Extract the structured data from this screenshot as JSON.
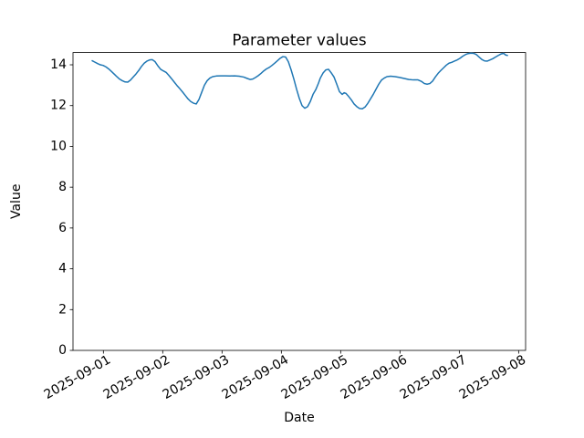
{
  "figure": {
    "background": "#ffffff",
    "text_color": "#000000",
    "spine_color": "#000000"
  },
  "chart_data": {
    "type": "line",
    "title": "Parameter values",
    "xlabel": "Date",
    "ylabel": "Value",
    "grid": false,
    "legend": null,
    "x_unit": "days since 2025-09-01 00:00",
    "x_tick_labels": [
      "2025-09-01",
      "2025-09-02",
      "2025-09-03",
      "2025-09-04",
      "2025-09-05",
      "2025-09-06",
      "2025-09-07",
      "2025-09-08"
    ],
    "x_ticks_day_offset": [
      0,
      1,
      2,
      3,
      4,
      5,
      6,
      7
    ],
    "x_tick_rotation_deg": 30,
    "y_ticks": [
      0,
      2,
      4,
      6,
      8,
      10,
      12,
      14
    ],
    "xlim_day_offset": [
      -0.5125,
      7.1175
    ],
    "ylim": [
      0,
      14.6
    ],
    "series": [
      {
        "name": "parameter-values",
        "color": "#1f77b4",
        "line_width": 1.5,
        "points_day_value": [
          [
            -0.189,
            14.2
          ],
          [
            -0.143,
            14.13
          ],
          [
            -0.097,
            14.06
          ],
          [
            -0.051,
            14.0
          ],
          [
            -0.005,
            13.97
          ],
          [
            0.042,
            13.9
          ],
          [
            0.088,
            13.8
          ],
          [
            0.134,
            13.68
          ],
          [
            0.18,
            13.55
          ],
          [
            0.226,
            13.42
          ],
          [
            0.272,
            13.3
          ],
          [
            0.318,
            13.22
          ],
          [
            0.365,
            13.16
          ],
          [
            0.411,
            13.15
          ],
          [
            0.457,
            13.25
          ],
          [
            0.503,
            13.4
          ],
          [
            0.549,
            13.55
          ],
          [
            0.595,
            13.72
          ],
          [
            0.642,
            13.92
          ],
          [
            0.688,
            14.08
          ],
          [
            0.734,
            14.18
          ],
          [
            0.78,
            14.24
          ],
          [
            0.826,
            14.25
          ],
          [
            0.872,
            14.15
          ],
          [
            0.918,
            13.95
          ],
          [
            0.965,
            13.78
          ],
          [
            1.011,
            13.7
          ],
          [
            1.057,
            13.63
          ],
          [
            1.103,
            13.48
          ],
          [
            1.149,
            13.32
          ],
          [
            1.195,
            13.15
          ],
          [
            1.242,
            12.98
          ],
          [
            1.288,
            12.83
          ],
          [
            1.334,
            12.67
          ],
          [
            1.38,
            12.5
          ],
          [
            1.426,
            12.33
          ],
          [
            1.472,
            12.2
          ],
          [
            1.518,
            12.12
          ],
          [
            1.565,
            12.08
          ],
          [
            1.611,
            12.3
          ],
          [
            1.657,
            12.65
          ],
          [
            1.703,
            13.0
          ],
          [
            1.749,
            13.22
          ],
          [
            1.795,
            13.35
          ],
          [
            1.842,
            13.42
          ],
          [
            1.903,
            13.45
          ],
          [
            1.98,
            13.46
          ],
          [
            2.057,
            13.46
          ],
          [
            2.134,
            13.45
          ],
          [
            2.211,
            13.46
          ],
          [
            2.288,
            13.44
          ],
          [
            2.365,
            13.4
          ],
          [
            2.426,
            13.33
          ],
          [
            2.472,
            13.28
          ],
          [
            2.518,
            13.3
          ],
          [
            2.565,
            13.38
          ],
          [
            2.611,
            13.47
          ],
          [
            2.657,
            13.58
          ],
          [
            2.703,
            13.7
          ],
          [
            2.749,
            13.8
          ],
          [
            2.795,
            13.87
          ],
          [
            2.842,
            13.97
          ],
          [
            2.888,
            14.08
          ],
          [
            2.934,
            14.2
          ],
          [
            2.98,
            14.32
          ],
          [
            3.026,
            14.4
          ],
          [
            3.072,
            14.38
          ],
          [
            3.118,
            14.15
          ],
          [
            3.165,
            13.75
          ],
          [
            3.211,
            13.3
          ],
          [
            3.257,
            12.8
          ],
          [
            3.303,
            12.35
          ],
          [
            3.349,
            12.0
          ],
          [
            3.395,
            11.87
          ],
          [
            3.442,
            11.95
          ],
          [
            3.488,
            12.2
          ],
          [
            3.534,
            12.55
          ],
          [
            3.58,
            12.78
          ],
          [
            3.626,
            13.1
          ],
          [
            3.657,
            13.35
          ],
          [
            3.703,
            13.6
          ],
          [
            3.749,
            13.75
          ],
          [
            3.795,
            13.78
          ],
          [
            3.842,
            13.6
          ],
          [
            3.888,
            13.4
          ],
          [
            3.934,
            13.05
          ],
          [
            3.98,
            12.68
          ],
          [
            4.026,
            12.55
          ],
          [
            4.057,
            12.63
          ],
          [
            4.088,
            12.6
          ],
          [
            4.134,
            12.45
          ],
          [
            4.18,
            12.28
          ],
          [
            4.226,
            12.08
          ],
          [
            4.272,
            11.95
          ],
          [
            4.318,
            11.86
          ],
          [
            4.365,
            11.84
          ],
          [
            4.411,
            11.93
          ],
          [
            4.457,
            12.11
          ],
          [
            4.503,
            12.33
          ],
          [
            4.549,
            12.55
          ],
          [
            4.595,
            12.8
          ],
          [
            4.642,
            13.05
          ],
          [
            4.688,
            13.25
          ],
          [
            4.734,
            13.35
          ],
          [
            4.78,
            13.42
          ],
          [
            4.842,
            13.44
          ],
          [
            4.918,
            13.42
          ],
          [
            4.995,
            13.38
          ],
          [
            5.072,
            13.33
          ],
          [
            5.149,
            13.28
          ],
          [
            5.226,
            13.26
          ],
          [
            5.303,
            13.26
          ],
          [
            5.365,
            13.18
          ],
          [
            5.411,
            13.08
          ],
          [
            5.457,
            13.05
          ],
          [
            5.503,
            13.08
          ],
          [
            5.549,
            13.2
          ],
          [
            5.595,
            13.4
          ],
          [
            5.642,
            13.58
          ],
          [
            5.688,
            13.72
          ],
          [
            5.734,
            13.85
          ],
          [
            5.78,
            13.98
          ],
          [
            5.826,
            14.08
          ],
          [
            5.872,
            14.12
          ],
          [
            5.918,
            14.18
          ],
          [
            5.965,
            14.24
          ],
          [
            6.011,
            14.32
          ],
          [
            6.057,
            14.42
          ],
          [
            6.103,
            14.5
          ],
          [
            6.149,
            14.55
          ],
          [
            6.195,
            14.57
          ],
          [
            6.242,
            14.56
          ],
          [
            6.288,
            14.5
          ],
          [
            6.334,
            14.38
          ],
          [
            6.38,
            14.26
          ],
          [
            6.426,
            14.19
          ],
          [
            6.472,
            14.18
          ],
          [
            6.518,
            14.24
          ],
          [
            6.565,
            14.3
          ],
          [
            6.611,
            14.38
          ],
          [
            6.657,
            14.46
          ],
          [
            6.703,
            14.53
          ],
          [
            6.749,
            14.56
          ],
          [
            6.78,
            14.48
          ],
          [
            6.811,
            14.46
          ]
        ]
      }
    ]
  }
}
